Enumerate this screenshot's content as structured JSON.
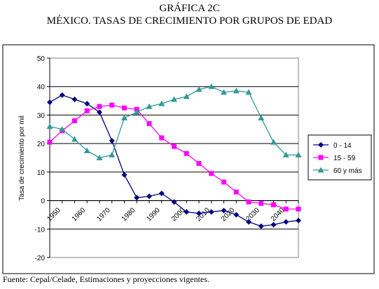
{
  "header": {
    "title_line1": "GRÁFICA 2C",
    "title_line2": "MÉXICO. TASAS DE CRECIMIENTO POR GRUPOS DE EDAD"
  },
  "footer": {
    "source": "Fuente: Cepal/Celade, Estimaciones y proyecciones vigentes."
  },
  "chart_data": {
    "type": "line",
    "title": "",
    "xlabel": "",
    "ylabel": "Tasa de crecimiento por mil",
    "xlim": [
      1950,
      2050
    ],
    "ylim": [
      -20,
      50
    ],
    "yticks": [
      -20,
      -10,
      0,
      10,
      20,
      30,
      40,
      50
    ],
    "xticks": [
      1950,
      1960,
      1970,
      1980,
      1990,
      2000,
      2010,
      2020,
      2030,
      2040
    ],
    "grid": "horizontal",
    "legend_position": "right",
    "x": [
      1950,
      1955,
      1960,
      1965,
      1970,
      1975,
      1980,
      1985,
      1990,
      1995,
      2000,
      2005,
      2010,
      2015,
      2020,
      2025,
      2030,
      2035,
      2040,
      2045,
      2050
    ],
    "series": [
      {
        "name": "0 - 14",
        "color": "#000080",
        "marker": "diamond",
        "values": [
          34.5,
          37,
          35.5,
          34,
          31,
          21,
          9,
          1,
          1.5,
          2.5,
          -0.5,
          -4,
          -4.5,
          -4,
          -3.5,
          -5,
          -7.5,
          -9,
          -8.5,
          -7.5,
          -7
        ]
      },
      {
        "name": "15 - 59",
        "color": "#ff00ff",
        "marker": "square",
        "values": [
          20.5,
          24.5,
          28,
          31.5,
          33,
          33.5,
          32.5,
          32,
          27,
          22,
          19,
          16.5,
          13,
          9.5,
          6.5,
          3,
          -0.5,
          -1,
          -1.5,
          -3,
          -3
        ]
      },
      {
        "name": "60 y más",
        "color": "#339999",
        "marker": "triangle",
        "values": [
          26,
          25,
          21.5,
          17.5,
          15,
          16,
          29,
          31,
          33,
          34,
          35.5,
          36.5,
          39,
          40,
          38,
          38.5,
          38,
          29,
          20.5,
          16,
          16
        ]
      }
    ]
  }
}
